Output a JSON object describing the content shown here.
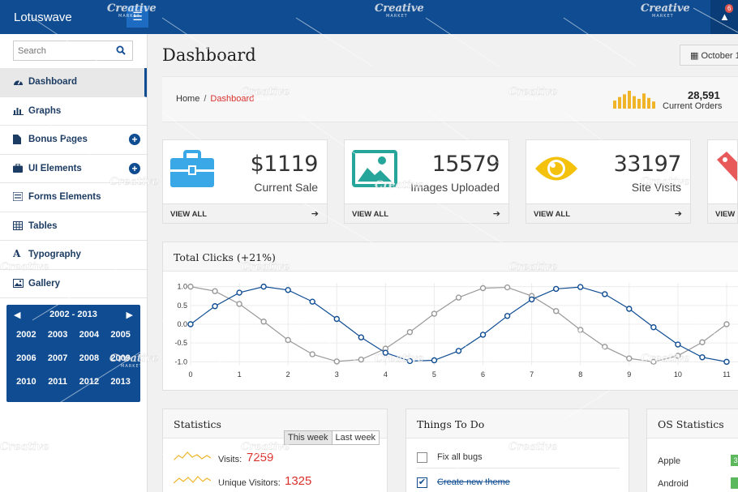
{
  "app": {
    "brand": "Lotuswave",
    "notification_count": "6"
  },
  "sidebar": {
    "search_placeholder": "Search",
    "items": [
      {
        "label": "Dashboard",
        "icon": "dashboard-icon",
        "active": true
      },
      {
        "label": "Graphs",
        "icon": "bar-chart-icon"
      },
      {
        "label": "Bonus Pages",
        "icon": "file-icon",
        "expandable": true
      },
      {
        "label": "UI Elements",
        "icon": "briefcase-icon",
        "expandable": true
      },
      {
        "label": "Forms Elements",
        "icon": "list-icon"
      },
      {
        "label": "Tables",
        "icon": "table-icon"
      },
      {
        "label": "Typography",
        "icon": "font-icon"
      },
      {
        "label": "Gallery",
        "icon": "image-icon"
      }
    ],
    "calendar": {
      "range": "2002 - 2013",
      "years": [
        "2002",
        "2003",
        "2004",
        "2005",
        "2006",
        "2007",
        "2008",
        "2009",
        "2010",
        "2011",
        "2012",
        "2013"
      ]
    }
  },
  "page": {
    "title": "Dashboard",
    "date_button": "October 1"
  },
  "breadcrumb": {
    "home": "Home",
    "separator": "/",
    "current": "Dashboard"
  },
  "orders": {
    "value": "28,591",
    "label": "Current Orders",
    "bars": [
      0.45,
      0.65,
      0.8,
      1.0,
      0.7,
      0.55,
      0.85,
      0.6,
      0.4
    ],
    "color": "#f0b429"
  },
  "stat_cards": [
    {
      "value": "$1119",
      "label": "Current Sale",
      "footer": "VIEW ALL",
      "icon": "briefcase-icon",
      "color": "#3aa8e6"
    },
    {
      "value": "15579",
      "label": "Images Uploaded",
      "footer": "VIEW ALL",
      "icon": "image-icon",
      "color": "#26a69a"
    },
    {
      "value": "33197",
      "label": "Site Visits",
      "footer": "VIEW ALL",
      "icon": "eye-icon",
      "color": "#f4c20d"
    },
    {
      "value": "",
      "label": "",
      "footer": "VIEW A",
      "icon": "tag-icon",
      "color": "#e8595a"
    }
  ],
  "chart_panel": {
    "title": "Total Clicks (+21%)"
  },
  "chart_data": {
    "type": "line",
    "title": "Total Clicks (+21%)",
    "x_ticks": [
      0,
      1,
      2,
      3,
      4,
      5,
      6,
      7,
      8,
      9,
      10,
      11
    ],
    "y_ticks": [
      "1.0",
      "0.5",
      "0.0",
      "-0.5",
      "-1.0"
    ],
    "xlim": [
      0,
      11.25
    ],
    "ylim": [
      -1.1,
      1.1
    ],
    "grid": true,
    "series": [
      {
        "color": "#0f4c92",
        "x": [
          0,
          0.5,
          1,
          1.5,
          2,
          2.5,
          3,
          3.5,
          4,
          4.5,
          5,
          5.5,
          6,
          6.5,
          7,
          7.5,
          8,
          8.5,
          9,
          9.5,
          10,
          10.5,
          11
        ],
        "y": [
          0.0,
          0.48,
          0.84,
          1.0,
          0.91,
          0.6,
          0.14,
          -0.35,
          -0.76,
          -0.98,
          -0.96,
          -0.71,
          -0.28,
          0.22,
          0.66,
          0.94,
          0.99,
          0.8,
          0.41,
          -0.08,
          -0.54,
          -0.88,
          -1.0
        ]
      },
      {
        "color": "#999999",
        "x": [
          0,
          0.5,
          1,
          1.5,
          2,
          2.5,
          3,
          3.5,
          4,
          4.5,
          5,
          5.5,
          6,
          6.5,
          7,
          7.5,
          8,
          8.5,
          9,
          9.5,
          10,
          10.5,
          11
        ],
        "y": [
          1.0,
          0.88,
          0.54,
          0.07,
          -0.42,
          -0.8,
          -0.99,
          -0.94,
          -0.65,
          -0.21,
          0.28,
          0.71,
          0.96,
          0.98,
          0.75,
          0.35,
          -0.15,
          -0.6,
          -0.91,
          -1.0,
          -0.84,
          -0.48,
          0.0
        ]
      }
    ]
  },
  "statistics": {
    "title": "Statistics",
    "toggle": [
      "This week",
      "Last week"
    ],
    "rows": [
      {
        "label": "Visits:",
        "value": "7259",
        "spark_color": "#f0b429"
      },
      {
        "label": "Unique Visitors:",
        "value": "1325",
        "spark_color": "#f0b429"
      }
    ]
  },
  "todo": {
    "title": "Things To Do",
    "items": [
      {
        "text": "Fix all bugs",
        "done": false
      },
      {
        "text": "Create new theme",
        "done": true
      }
    ]
  },
  "os_stats": {
    "title": "OS Statistics",
    "rows": [
      {
        "name": "Apple",
        "badge": "3"
      },
      {
        "name": "Android",
        "badge": ""
      }
    ]
  },
  "watermark": {
    "text": "Creative",
    "subtext": "MARKET"
  }
}
